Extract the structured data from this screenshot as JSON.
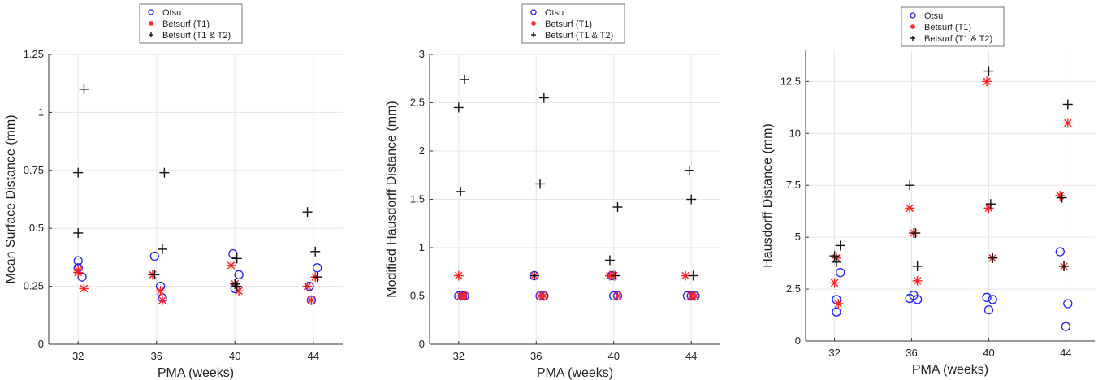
{
  "chart_data": [
    {
      "type": "scatter",
      "xlabel": "PMA (weeks)",
      "ylabel": "Mean Surface Distance (mm)",
      "xlim": [
        30.5,
        45.5
      ],
      "ylim": [
        0,
        1.25
      ],
      "xticks": [
        32,
        36,
        40,
        44
      ],
      "yticks": [
        0,
        0.25,
        0.5,
        0.75,
        1,
        1.25
      ],
      "ytick_labels": [
        "0",
        "0.25",
        "0.5",
        "0.75",
        "1",
        "1.25"
      ],
      "grid": true,
      "legend_position": "top-center-outside",
      "series": [
        {
          "name": "Otsu",
          "marker": "circle",
          "color": "#1f1fff",
          "points": [
            [
              32.0,
              0.36
            ],
            [
              32.2,
              0.29
            ],
            [
              32.0,
              0.33
            ],
            [
              35.9,
              0.38
            ],
            [
              36.2,
              0.25
            ],
            [
              36.3,
              0.2
            ],
            [
              39.9,
              0.39
            ],
            [
              40.2,
              0.3
            ],
            [
              40.0,
              0.24
            ],
            [
              43.8,
              0.25
            ],
            [
              44.2,
              0.33
            ],
            [
              43.9,
              0.19
            ]
          ]
        },
        {
          "name": "Betsurf (T1)",
          "marker": "asterisk",
          "color": "#ff2020",
          "points": [
            [
              32.0,
              0.31
            ],
            [
              32.0,
              0.32
            ],
            [
              32.3,
              0.24
            ],
            [
              35.8,
              0.3
            ],
            [
              36.2,
              0.23
            ],
            [
              36.3,
              0.19
            ],
            [
              39.8,
              0.34
            ],
            [
              40.0,
              0.26
            ],
            [
              40.2,
              0.23
            ],
            [
              43.7,
              0.25
            ],
            [
              43.9,
              0.19
            ],
            [
              44.1,
              0.29
            ]
          ]
        },
        {
          "name": "Betsurf (T1 & T2)",
          "marker": "plus",
          "color": "#111111",
          "points": [
            [
              32.3,
              1.1
            ],
            [
              32.0,
              0.74
            ],
            [
              32.0,
              0.48
            ],
            [
              36.4,
              0.74
            ],
            [
              36.3,
              0.41
            ],
            [
              35.9,
              0.3
            ],
            [
              40.1,
              0.37
            ],
            [
              40.1,
              0.25
            ],
            [
              40.0,
              0.26
            ],
            [
              43.7,
              0.57
            ],
            [
              44.1,
              0.4
            ],
            [
              44.2,
              0.29
            ]
          ]
        }
      ]
    },
    {
      "type": "scatter",
      "xlabel": "PMA (weeks)",
      "ylabel": "Modified Hausdorff Distance (mm)",
      "xlim": [
        30.5,
        45.5
      ],
      "ylim": [
        0,
        3
      ],
      "xticks": [
        32,
        36,
        40,
        44
      ],
      "yticks": [
        0,
        0.5,
        1,
        1.5,
        2,
        2.5,
        3
      ],
      "ytick_labels": [
        "0",
        "0.5",
        "1",
        "1.5",
        "2",
        "2.5",
        "3"
      ],
      "grid": true,
      "legend_position": "top-center-outside",
      "series": [
        {
          "name": "Otsu",
          "marker": "circle",
          "color": "#1f1fff",
          "points": [
            [
              32.0,
              0.5
            ],
            [
              32.2,
              0.5
            ],
            [
              32.3,
              0.5
            ],
            [
              35.9,
              0.71
            ],
            [
              36.2,
              0.5
            ],
            [
              36.4,
              0.5
            ],
            [
              39.9,
              0.71
            ],
            [
              40.0,
              0.5
            ],
            [
              40.2,
              0.5
            ],
            [
              43.8,
              0.5
            ],
            [
              44.0,
              0.5
            ],
            [
              44.2,
              0.5
            ]
          ]
        },
        {
          "name": "Betsurf (T1)",
          "marker": "asterisk",
          "color": "#ff2020",
          "points": [
            [
              32.0,
              0.71
            ],
            [
              32.1,
              0.5
            ],
            [
              32.3,
              0.5
            ],
            [
              35.9,
              0.71
            ],
            [
              36.2,
              0.5
            ],
            [
              36.4,
              0.5
            ],
            [
              39.8,
              0.71
            ],
            [
              40.0,
              0.71
            ],
            [
              40.2,
              0.5
            ],
            [
              43.7,
              0.71
            ],
            [
              44.0,
              0.5
            ],
            [
              44.2,
              0.5
            ]
          ]
        },
        {
          "name": "Betsurf (T1 & T2)",
          "marker": "plus",
          "color": "#111111",
          "points": [
            [
              32.3,
              2.74
            ],
            [
              32.0,
              2.45
            ],
            [
              32.1,
              1.58
            ],
            [
              36.4,
              2.55
            ],
            [
              36.2,
              1.66
            ],
            [
              35.9,
              0.71
            ],
            [
              40.2,
              1.42
            ],
            [
              39.8,
              0.87
            ],
            [
              40.1,
              0.71
            ],
            [
              43.9,
              1.8
            ],
            [
              44.0,
              1.5
            ],
            [
              44.1,
              0.71
            ]
          ]
        }
      ]
    },
    {
      "type": "scatter",
      "xlabel": "PMA (weeks)",
      "ylabel": "Hausdorff Distance (mm)",
      "xlim": [
        30.5,
        45.5
      ],
      "ylim": [
        0,
        14
      ],
      "xticks": [
        32,
        36,
        40,
        44
      ],
      "yticks": [
        0,
        2.5,
        5,
        7.5,
        10,
        12.5
      ],
      "ytick_labels": [
        "0",
        "2.5",
        "5",
        "7.5",
        "10",
        "12.5"
      ],
      "grid": true,
      "legend_position": "top-center-outside",
      "series": [
        {
          "name": "Otsu",
          "marker": "circle",
          "color": "#1f1fff",
          "points": [
            [
              32.3,
              3.3
            ],
            [
              32.1,
              2.0
            ],
            [
              32.1,
              1.4
            ],
            [
              35.9,
              2.05
            ],
            [
              36.1,
              2.2
            ],
            [
              36.3,
              2.0
            ],
            [
              39.9,
              2.1
            ],
            [
              40.2,
              2.0
            ],
            [
              40.0,
              1.5
            ],
            [
              43.7,
              4.3
            ],
            [
              44.1,
              1.8
            ],
            [
              44.0,
              0.7
            ]
          ]
        },
        {
          "name": "Betsurf (T1)",
          "marker": "asterisk",
          "color": "#ff2020",
          "points": [
            [
              32.1,
              4.0
            ],
            [
              32.0,
              2.8
            ],
            [
              32.2,
              1.8
            ],
            [
              35.9,
              6.4
            ],
            [
              36.1,
              5.2
            ],
            [
              36.3,
              2.9
            ],
            [
              39.9,
              12.5
            ],
            [
              40.0,
              6.4
            ],
            [
              40.2,
              4.0
            ],
            [
              43.7,
              7.0
            ],
            [
              44.1,
              10.5
            ],
            [
              43.9,
              3.6
            ]
          ]
        },
        {
          "name": "Betsurf (T1 & T2)",
          "marker": "plus",
          "color": "#111111",
          "points": [
            [
              32.3,
              4.6
            ],
            [
              32.1,
              3.8
            ],
            [
              32.0,
              4.1
            ],
            [
              35.9,
              7.5
            ],
            [
              36.2,
              5.2
            ],
            [
              36.3,
              3.6
            ],
            [
              40.0,
              13.0
            ],
            [
              40.1,
              6.6
            ],
            [
              40.2,
              4.0
            ],
            [
              44.1,
              11.4
            ],
            [
              43.8,
              6.9
            ],
            [
              43.9,
              3.6
            ]
          ]
        }
      ]
    }
  ]
}
